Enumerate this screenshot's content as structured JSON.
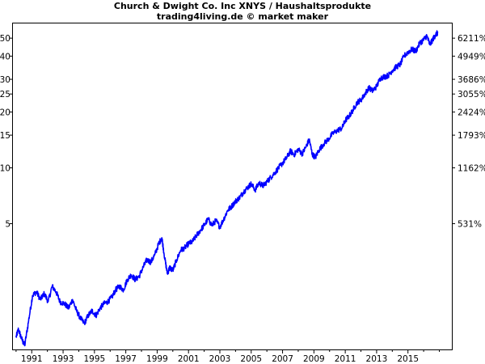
{
  "chart_data": {
    "type": "line",
    "title": "Church & Dwight Co. Inc XNYS / Haushaltsprodukte",
    "subtitle": "trading4living.de © market maker",
    "xlabel": "",
    "ylabel": "",
    "y_scale": "log",
    "xlim": [
      1989.8,
      2017.8
    ],
    "ylim": [
      1.05,
      60
    ],
    "grid": false,
    "legend": "none",
    "colors": {
      "line": "#0000ff",
      "axis": "#000000",
      "background": "#ffffff"
    },
    "x_ticks": [
      "1991",
      "1993",
      "1995",
      "1997",
      "1999",
      "2001",
      "2003",
      "2005",
      "2007",
      "2009",
      "2011",
      "2013",
      "2015"
    ],
    "y_ticks_left": [
      {
        "value": 50,
        "label": "50"
      },
      {
        "value": 40,
        "label": "40"
      },
      {
        "value": 30,
        "label": "30"
      },
      {
        "value": 25,
        "label": "25"
      },
      {
        "value": 20,
        "label": "20"
      },
      {
        "value": 15,
        "label": "15"
      },
      {
        "value": 10,
        "label": "10"
      },
      {
        "value": 5,
        "label": "5"
      }
    ],
    "y_ticks_right": [
      {
        "value": 50,
        "label": "6211%"
      },
      {
        "value": 40,
        "label": "4949%"
      },
      {
        "value": 30,
        "label": "3686%"
      },
      {
        "value": 25,
        "label": "3055%"
      },
      {
        "value": 20,
        "label": "2424%"
      },
      {
        "value": 15,
        "label": "1793%"
      },
      {
        "value": 10,
        "label": "1162%"
      },
      {
        "value": 5,
        "label": "531%"
      }
    ],
    "series": [
      {
        "values": [
          [
            1990.0,
            1.22
          ],
          [
            1990.15,
            1.35
          ],
          [
            1990.35,
            1.2
          ],
          [
            1990.55,
            1.1
          ],
          [
            1990.8,
            1.5
          ],
          [
            1991.05,
            2.05
          ],
          [
            1991.3,
            2.15
          ],
          [
            1991.55,
            1.95
          ],
          [
            1991.8,
            2.1
          ],
          [
            1992.05,
            1.9
          ],
          [
            1992.3,
            2.3
          ],
          [
            1992.55,
            2.15
          ],
          [
            1992.8,
            1.9
          ],
          [
            1993.1,
            1.85
          ],
          [
            1993.35,
            1.75
          ],
          [
            1993.6,
            1.95
          ],
          [
            1993.85,
            1.7
          ],
          [
            1994.1,
            1.55
          ],
          [
            1994.35,
            1.45
          ],
          [
            1994.6,
            1.6
          ],
          [
            1994.85,
            1.7
          ],
          [
            1995.1,
            1.6
          ],
          [
            1995.35,
            1.75
          ],
          [
            1995.6,
            1.85
          ],
          [
            1995.85,
            1.9
          ],
          [
            1996.1,
            2.0
          ],
          [
            1996.35,
            2.2
          ],
          [
            1996.6,
            2.3
          ],
          [
            1996.85,
            2.2
          ],
          [
            1997.1,
            2.5
          ],
          [
            1997.35,
            2.65
          ],
          [
            1997.6,
            2.5
          ],
          [
            1997.85,
            2.6
          ],
          [
            1998.1,
            2.9
          ],
          [
            1998.35,
            3.2
          ],
          [
            1998.6,
            3.1
          ],
          [
            1998.85,
            3.4
          ],
          [
            1999.1,
            3.9
          ],
          [
            1999.3,
            4.2
          ],
          [
            1999.5,
            3.2
          ],
          [
            1999.65,
            2.7
          ],
          [
            1999.8,
            2.9
          ],
          [
            2000.0,
            2.8
          ],
          [
            2000.25,
            3.2
          ],
          [
            2000.5,
            3.6
          ],
          [
            2000.75,
            3.7
          ],
          [
            2001.0,
            3.9
          ],
          [
            2001.25,
            4.0
          ],
          [
            2001.5,
            4.3
          ],
          [
            2001.75,
            4.6
          ],
          [
            2002.0,
            4.9
          ],
          [
            2002.25,
            5.3
          ],
          [
            2002.5,
            4.9
          ],
          [
            2002.75,
            5.2
          ],
          [
            2003.0,
            4.8
          ],
          [
            2003.25,
            5.3
          ],
          [
            2003.5,
            5.9
          ],
          [
            2003.75,
            6.2
          ],
          [
            2004.0,
            6.6
          ],
          [
            2004.25,
            6.9
          ],
          [
            2004.5,
            7.4
          ],
          [
            2004.75,
            7.8
          ],
          [
            2005.0,
            8.2
          ],
          [
            2005.25,
            7.6
          ],
          [
            2005.5,
            8.3
          ],
          [
            2005.75,
            8.0
          ],
          [
            2006.0,
            8.4
          ],
          [
            2006.25,
            8.9
          ],
          [
            2006.5,
            9.4
          ],
          [
            2006.75,
            10.0
          ],
          [
            2007.0,
            10.6
          ],
          [
            2007.25,
            11.3
          ],
          [
            2007.5,
            12.3
          ],
          [
            2007.75,
            11.8
          ],
          [
            2008.0,
            12.6
          ],
          [
            2008.25,
            11.9
          ],
          [
            2008.5,
            13.0
          ],
          [
            2008.7,
            14.2
          ],
          [
            2008.9,
            11.8
          ],
          [
            2009.1,
            11.4
          ],
          [
            2009.3,
            12.4
          ],
          [
            2009.6,
            13.4
          ],
          [
            2009.9,
            14.2
          ],
          [
            2010.2,
            15.3
          ],
          [
            2010.5,
            15.9
          ],
          [
            2010.8,
            16.4
          ],
          [
            2011.0,
            18.0
          ],
          [
            2011.25,
            19.0
          ],
          [
            2011.5,
            20.5
          ],
          [
            2011.75,
            22.5
          ],
          [
            2012.0,
            23.2
          ],
          [
            2012.25,
            25.0
          ],
          [
            2012.5,
            27.0
          ],
          [
            2012.75,
            26.0
          ],
          [
            2013.0,
            27.5
          ],
          [
            2013.25,
            30.5
          ],
          [
            2013.5,
            31.0
          ],
          [
            2013.75,
            31.5
          ],
          [
            2014.0,
            33.5
          ],
          [
            2014.25,
            35.0
          ],
          [
            2014.5,
            36.0
          ],
          [
            2014.75,
            40.0
          ],
          [
            2015.0,
            42.0
          ],
          [
            2015.25,
            43.5
          ],
          [
            2015.5,
            42.5
          ],
          [
            2015.75,
            47.0
          ],
          [
            2016.0,
            49.0
          ],
          [
            2016.2,
            51.5
          ],
          [
            2016.4,
            46.0
          ],
          [
            2016.6,
            49.5
          ],
          [
            2016.75,
            52.0
          ],
          [
            2016.9,
            53.5
          ]
        ]
      }
    ]
  }
}
